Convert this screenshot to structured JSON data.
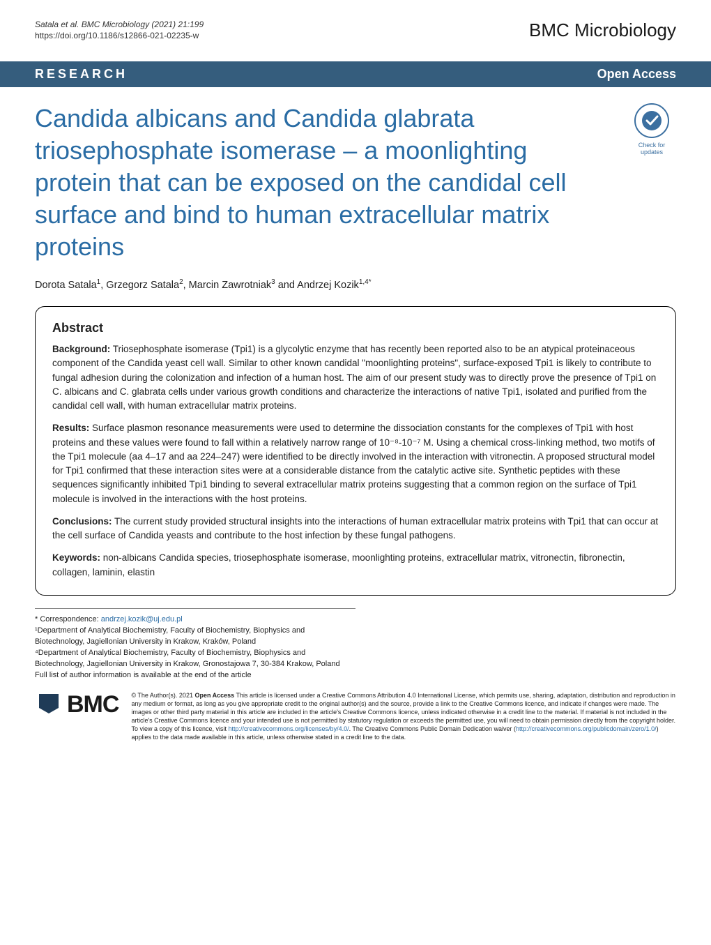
{
  "header": {
    "citation": "Satala et al. BMC Microbiology        (2021) 21:199",
    "doi": "https://doi.org/10.1186/s12866-021-02235-w",
    "journal_brand": "BMC Microbiology"
  },
  "type_bar": {
    "research_label": "RESEARCH",
    "open_access": "Open Access"
  },
  "badge": {
    "line1": "Check for",
    "line2": "updates"
  },
  "title": "Candida albicans and Candida glabrata triosephosphate isomerase – a moonlighting protein that can be exposed on the candidal cell surface and bind to human extracellular matrix proteins",
  "authors_html": "Dorota Satala<sup>1</sup>, Grzegorz Satala<sup>2</sup>, Marcin Zawrotniak<sup>3</sup> and Andrzej Kozik<sup>1,4*</sup>",
  "abstract": {
    "heading": "Abstract",
    "background_label": "Background:",
    "background_text": " Triosephosphate isomerase (Tpi1) is a glycolytic enzyme that has recently been reported also to be an atypical proteinaceous component of the Candida yeast cell wall. Similar to other known candidal \"moonlighting proteins\", surface-exposed Tpi1 is likely to contribute to fungal adhesion during the colonization and infection of a human host. The aim of our present study was to directly prove the presence of Tpi1 on C. albicans and C. glabrata cells under various growth conditions and characterize the interactions of native Tpi1, isolated and purified from the candidal cell wall, with human extracellular matrix proteins.",
    "results_label": "Results:",
    "results_text": " Surface plasmon resonance measurements were used to determine the dissociation constants for the complexes of Tpi1 with host proteins and these values were found to fall within a relatively narrow range of 10⁻⁸-10⁻⁷ M. Using a chemical cross-linking method, two motifs of the Tpi1 molecule (aa 4–17 and aa 224–247) were identified to be directly involved in the interaction with vitronectin. A proposed structural model for Tpi1 confirmed that these interaction sites were at a considerable distance from the catalytic active site. Synthetic peptides with these sequences significantly inhibited Tpi1 binding to several extracellular matrix proteins suggesting that a common region on the surface of Tpi1 molecule is involved in the interactions with the host proteins.",
    "conclusions_label": "Conclusions:",
    "conclusions_text": " The current study provided structural insights into the interactions of human extracellular matrix proteins with Tpi1 that can occur at the cell surface of Candida yeasts and contribute to the host infection by these fungal pathogens.",
    "keywords_label": "Keywords:",
    "keywords_text": " non-albicans Candida species, triosephosphate isomerase, moonlighting proteins, extracellular matrix, vitronectin, fibronectin, collagen, laminin, elastin"
  },
  "correspondence": {
    "star": "* Correspondence: ",
    "email": "andrzej.kozik@uj.edu.pl",
    "aff1": "¹Department of Analytical Biochemistry, Faculty of Biochemistry, Biophysics and Biotechnology, Jagiellonian University in Krakow, Kraków, Poland",
    "aff4": "⁴Department of Analytical Biochemistry, Faculty of Biochemistry, Biophysics and Biotechnology, Jagiellonian University in Krakow, Gronostajowa 7, 30-384 Krakow, Poland",
    "full_list": "Full list of author information is available at the end of the article"
  },
  "footer": {
    "bmc": "BMC",
    "license_prefix": "© The Author(s). 2021 ",
    "license_bold": "Open Access",
    "license_body": " This article is licensed under a Creative Commons Attribution 4.0 International License, which permits use, sharing, adaptation, distribution and reproduction in any medium or format, as long as you give appropriate credit to the original author(s) and the source, provide a link to the Creative Commons licence, and indicate if changes were made. The images or other third party material in this article are included in the article's Creative Commons licence, unless indicated otherwise in a credit line to the material. If material is not included in the article's Creative Commons licence and your intended use is not permitted by statutory regulation or exceeds the permitted use, you will need to obtain permission directly from the copyright holder. To view a copy of this licence, visit ",
    "license_link1": "http://creativecommons.org/licenses/by/4.0/",
    "license_body2": ". The Creative Commons Public Domain Dedication waiver (",
    "license_link2": "http://creativecommons.org/publicdomain/zero/1.0/",
    "license_body3": ") applies to the data made available in this article, unless otherwise stated in a credit line to the data."
  },
  "colors": {
    "bar_bg": "#355d7d",
    "title_color": "#2a6ca4",
    "link_color": "#2a6ca4",
    "bmc_flag": "#1f3b57"
  }
}
